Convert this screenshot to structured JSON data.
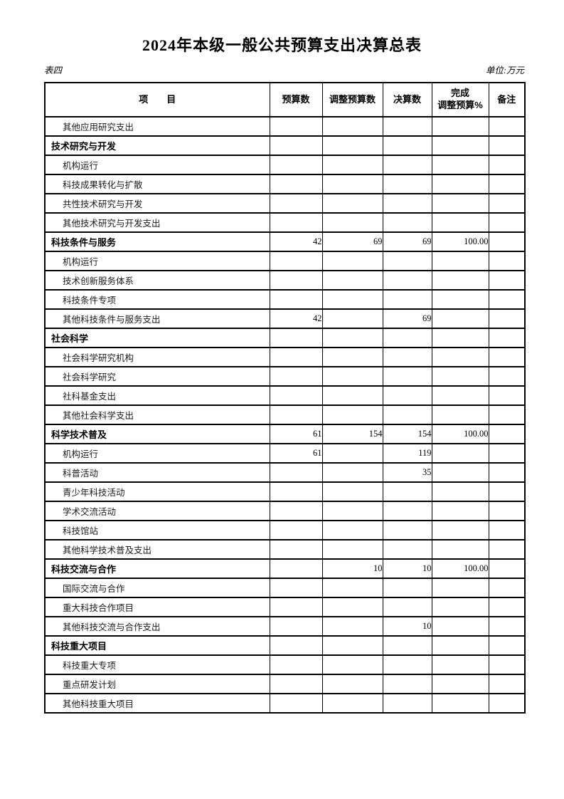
{
  "page": {
    "title": "2024年本级一般公共预算支出决算总表",
    "table_label": "表四",
    "unit_label": "单位:万元"
  },
  "table": {
    "columns": [
      "项　　目",
      "预算数",
      "调整预算数",
      "决算数",
      "完成\n调整预算%",
      "备注"
    ],
    "rows": [
      {
        "label": "其他应用研究支出",
        "level": 2,
        "values": [
          "",
          "",
          "",
          "",
          ""
        ]
      },
      {
        "label": "技术研究与开发",
        "level": 1,
        "values": [
          "",
          "",
          "",
          "",
          ""
        ]
      },
      {
        "label": "机构运行",
        "level": 2,
        "values": [
          "",
          "",
          "",
          "",
          ""
        ]
      },
      {
        "label": "科技成果转化与扩散",
        "level": 2,
        "values": [
          "",
          "",
          "",
          "",
          ""
        ]
      },
      {
        "label": "共性技术研究与开发",
        "level": 2,
        "values": [
          "",
          "",
          "",
          "",
          ""
        ]
      },
      {
        "label": "其他技术研究与开发支出",
        "level": 2,
        "values": [
          "",
          "",
          "",
          "",
          ""
        ]
      },
      {
        "label": "科技条件与服务",
        "level": 1,
        "values": [
          "42",
          "69",
          "69",
          "100.00",
          ""
        ]
      },
      {
        "label": "机构运行",
        "level": 2,
        "values": [
          "",
          "",
          "",
          "",
          ""
        ]
      },
      {
        "label": "技术创新服务体系",
        "level": 2,
        "values": [
          "",
          "",
          "",
          "",
          ""
        ]
      },
      {
        "label": "科技条件专项",
        "level": 2,
        "values": [
          "",
          "",
          "",
          "",
          ""
        ]
      },
      {
        "label": "其他科技条件与服务支出",
        "level": 2,
        "values": [
          "42",
          "",
          "69",
          "",
          ""
        ]
      },
      {
        "label": "社会科学",
        "level": 1,
        "values": [
          "",
          "",
          "",
          "",
          ""
        ]
      },
      {
        "label": "社会科学研究机构",
        "level": 2,
        "values": [
          "",
          "",
          "",
          "",
          ""
        ]
      },
      {
        "label": "社会科学研究",
        "level": 2,
        "values": [
          "",
          "",
          "",
          "",
          ""
        ]
      },
      {
        "label": "社科基金支出",
        "level": 2,
        "values": [
          "",
          "",
          "",
          "",
          ""
        ]
      },
      {
        "label": "其他社会科学支出",
        "level": 2,
        "values": [
          "",
          "",
          "",
          "",
          ""
        ]
      },
      {
        "label": "科学技术普及",
        "level": 1,
        "values": [
          "61",
          "154",
          "154",
          "100.00",
          ""
        ]
      },
      {
        "label": "机构运行",
        "level": 2,
        "values": [
          "61",
          "",
          "119",
          "",
          ""
        ]
      },
      {
        "label": "科普活动",
        "level": 2,
        "values": [
          "",
          "",
          "35",
          "",
          ""
        ]
      },
      {
        "label": "青少年科技活动",
        "level": 2,
        "values": [
          "",
          "",
          "",
          "",
          ""
        ]
      },
      {
        "label": "学术交流活动",
        "level": 2,
        "values": [
          "",
          "",
          "",
          "",
          ""
        ]
      },
      {
        "label": "科技馆站",
        "level": 2,
        "values": [
          "",
          "",
          "",
          "",
          ""
        ]
      },
      {
        "label": "其他科学技术普及支出",
        "level": 2,
        "values": [
          "",
          "",
          "",
          "",
          ""
        ]
      },
      {
        "label": "科技交流与合作",
        "level": 1,
        "values": [
          "",
          "10",
          "10",
          "100.00",
          ""
        ]
      },
      {
        "label": "国际交流与合作",
        "level": 2,
        "values": [
          "",
          "",
          "",
          "",
          ""
        ]
      },
      {
        "label": "重大科技合作项目",
        "level": 2,
        "values": [
          "",
          "",
          "",
          "",
          ""
        ]
      },
      {
        "label": "其他科技交流与合作支出",
        "level": 2,
        "values": [
          "",
          "",
          "10",
          "",
          ""
        ]
      },
      {
        "label": "科技重大项目",
        "level": 1,
        "values": [
          "",
          "",
          "",
          "",
          ""
        ]
      },
      {
        "label": "科技重大专项",
        "level": 2,
        "values": [
          "",
          "",
          "",
          "",
          ""
        ]
      },
      {
        "label": "重点研发计划",
        "level": 2,
        "values": [
          "",
          "",
          "",
          "",
          ""
        ]
      },
      {
        "label": "其他科技重大项目",
        "level": 2,
        "values": [
          "",
          "",
          "",
          "",
          ""
        ]
      }
    ]
  }
}
